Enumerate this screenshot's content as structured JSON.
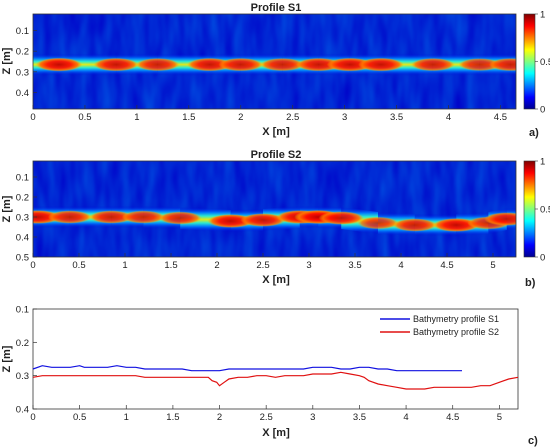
{
  "chart_data": [
    {
      "type": "heatmap",
      "title": "Profile  S1",
      "panel_label": "a)",
      "xlabel": "X [m]",
      "ylabel": "Z [m]",
      "xlim": [
        0,
        4.65
      ],
      "ylim": [
        0.48,
        0.02
      ],
      "x_ticks": [
        "0",
        "0.5",
        "1",
        "1.5",
        "2",
        "2.5",
        "3",
        "3.5",
        "4",
        "4.5"
      ],
      "y_ticks": [
        "0.1",
        "0.2",
        "0.3",
        "0.4"
      ],
      "colorbar_ticks": [
        "1",
        "0.5",
        "0"
      ],
      "colorbar_range": [
        0,
        1
      ],
      "colormap": "jet",
      "reflector": {
        "depth": 0.265,
        "x": [
          0.25,
          0.8,
          1.2,
          1.7,
          2.0,
          2.4,
          2.75,
          3.05,
          3.35,
          3.85,
          4.3,
          4.6
        ],
        "amplitude": [
          0.95,
          0.9,
          0.85,
          0.9,
          0.88,
          0.85,
          0.9,
          0.93,
          0.92,
          0.85,
          0.8,
          0.85
        ]
      }
    },
    {
      "type": "heatmap",
      "title": "Profile  S2",
      "panel_label": "b)",
      "xlabel": "X [m]",
      "ylabel": "Z [m]",
      "xlim": [
        0,
        5.25
      ],
      "ylim": [
        0.5,
        0.02
      ],
      "x_ticks": [
        "0",
        "0.5",
        "1",
        "1.5",
        "2",
        "2.5",
        "3",
        "3.5",
        "4",
        "4.5",
        "5"
      ],
      "y_ticks": [
        "0.1",
        "0.2",
        "0.3",
        "0.4",
        "0.5"
      ],
      "colorbar_ticks": [
        "1",
        "0.5",
        "0"
      ],
      "colorbar_range": [
        0,
        1
      ],
      "colormap": "jet",
      "reflector": {
        "x": [
          0.05,
          0.4,
          0.85,
          1.2,
          1.6,
          2.15,
          2.5,
          2.9,
          3.1,
          3.35,
          3.75,
          4.15,
          4.6,
          4.95,
          5.15
        ],
        "depth": [
          0.3,
          0.3,
          0.3,
          0.3,
          0.305,
          0.32,
          0.315,
          0.3,
          0.3,
          0.305,
          0.33,
          0.34,
          0.34,
          0.33,
          0.31
        ],
        "amplitude": [
          0.95,
          0.85,
          0.85,
          0.82,
          0.82,
          0.95,
          0.9,
          0.95,
          1.0,
          0.9,
          0.75,
          0.85,
          0.95,
          0.8,
          0.9
        ]
      }
    },
    {
      "type": "line",
      "panel_label": "c)",
      "xlabel": "X [m]",
      "ylabel": "Z [m]",
      "xlim": [
        0,
        5.2
      ],
      "ylim": [
        0.4,
        0.1
      ],
      "x_ticks": [
        "0",
        "0.5",
        "1",
        "1.5",
        "2",
        "2.5",
        "3",
        "3.5",
        "4",
        "4.5",
        "5"
      ],
      "y_ticks": [
        "0.1",
        "0.2",
        "0.3",
        "0.4"
      ],
      "legend_position": "top-right",
      "series": [
        {
          "name": "Bathymetry profile S1",
          "color": "#1010e0",
          "x": [
            0,
            0.1,
            0.2,
            0.3,
            0.4,
            0.5,
            0.55,
            0.6,
            0.7,
            0.8,
            0.9,
            1.0,
            1.1,
            1.2,
            1.3,
            1.4,
            1.5,
            1.6,
            1.7,
            1.8,
            1.9,
            2.0,
            2.1,
            2.2,
            2.3,
            2.4,
            2.5,
            2.6,
            2.7,
            2.8,
            2.9,
            3.0,
            3.1,
            3.2,
            3.3,
            3.4,
            3.5,
            3.6,
            3.7,
            3.8,
            3.9,
            4.0,
            4.1,
            4.2,
            4.3,
            4.4,
            4.5,
            4.6
          ],
          "y": [
            0.28,
            0.27,
            0.275,
            0.275,
            0.275,
            0.27,
            0.275,
            0.275,
            0.275,
            0.275,
            0.27,
            0.275,
            0.275,
            0.28,
            0.28,
            0.28,
            0.28,
            0.28,
            0.285,
            0.285,
            0.285,
            0.285,
            0.28,
            0.28,
            0.28,
            0.28,
            0.28,
            0.28,
            0.28,
            0.28,
            0.28,
            0.275,
            0.275,
            0.275,
            0.28,
            0.28,
            0.275,
            0.275,
            0.28,
            0.28,
            0.285,
            0.285,
            0.285,
            0.285,
            0.285,
            0.285,
            0.285,
            0.285
          ]
        },
        {
          "name": "Bathymetry profile S2",
          "color": "#e01010",
          "x": [
            0,
            0.1,
            0.2,
            0.3,
            0.4,
            0.5,
            0.6,
            0.7,
            0.8,
            0.9,
            1.0,
            1.1,
            1.2,
            1.3,
            1.4,
            1.5,
            1.6,
            1.7,
            1.8,
            1.88,
            1.92,
            1.97,
            2.0,
            2.05,
            2.1,
            2.2,
            2.3,
            2.4,
            2.5,
            2.6,
            2.7,
            2.8,
            2.9,
            3.0,
            3.1,
            3.2,
            3.3,
            3.4,
            3.5,
            3.55,
            3.6,
            3.7,
            3.8,
            3.9,
            4.0,
            4.1,
            4.2,
            4.3,
            4.4,
            4.5,
            4.6,
            4.7,
            4.8,
            4.9,
            5.0,
            5.1,
            5.2
          ],
          "y": [
            0.305,
            0.3,
            0.3,
            0.3,
            0.3,
            0.3,
            0.3,
            0.3,
            0.3,
            0.3,
            0.3,
            0.3,
            0.305,
            0.305,
            0.305,
            0.305,
            0.305,
            0.305,
            0.305,
            0.305,
            0.315,
            0.32,
            0.33,
            0.32,
            0.31,
            0.305,
            0.305,
            0.3,
            0.3,
            0.305,
            0.3,
            0.3,
            0.3,
            0.295,
            0.295,
            0.295,
            0.29,
            0.295,
            0.3,
            0.305,
            0.315,
            0.325,
            0.33,
            0.335,
            0.34,
            0.34,
            0.34,
            0.335,
            0.335,
            0.335,
            0.335,
            0.335,
            0.33,
            0.33,
            0.32,
            0.31,
            0.305
          ]
        }
      ]
    }
  ]
}
